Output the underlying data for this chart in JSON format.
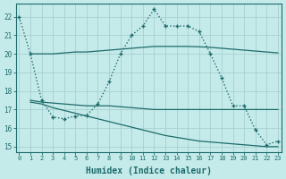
{
  "xlabel": "Humidex (Indice chaleur)",
  "bg_color": "#c5eaea",
  "grid_color": "#a8d0d0",
  "line_color": "#1e6b6b",
  "xlim": [
    -0.3,
    23.3
  ],
  "ylim": [
    14.7,
    22.7
  ],
  "x_ticks": [
    0,
    1,
    2,
    3,
    4,
    5,
    6,
    7,
    8,
    9,
    10,
    11,
    12,
    13,
    14,
    15,
    16,
    17,
    18,
    19,
    20,
    21,
    22,
    23
  ],
  "y_ticks": [
    15,
    16,
    17,
    18,
    19,
    20,
    21,
    22
  ],
  "main_x": [
    0,
    1,
    2,
    3,
    4,
    5,
    6,
    7,
    8,
    9,
    10,
    11,
    12,
    13,
    14,
    15,
    16,
    17,
    18,
    19,
    20,
    21,
    22,
    23
  ],
  "main_y": [
    22.0,
    20.0,
    17.5,
    16.6,
    16.5,
    16.65,
    16.7,
    17.3,
    18.5,
    20.0,
    21.0,
    21.5,
    22.4,
    21.5,
    21.5,
    21.5,
    21.2,
    20.0,
    18.7,
    17.2,
    17.2,
    15.9,
    15.1,
    15.3
  ],
  "line1_x": [
    1,
    2,
    3,
    4,
    5,
    6,
    7,
    8,
    9,
    10,
    11,
    12,
    13,
    14,
    15,
    16,
    17,
    18,
    19,
    20,
    21,
    22,
    23
  ],
  "line1_y": [
    20.0,
    20.0,
    20.0,
    20.05,
    20.1,
    20.1,
    20.15,
    20.2,
    20.25,
    20.3,
    20.35,
    20.4,
    20.4,
    20.4,
    20.4,
    20.38,
    20.35,
    20.3,
    20.25,
    20.2,
    20.15,
    20.1,
    20.05
  ],
  "line2_x": [
    1,
    2,
    3,
    4,
    5,
    6,
    7,
    8,
    9,
    10,
    11,
    12,
    13,
    14,
    15,
    16,
    17,
    18,
    19,
    20,
    21,
    22,
    23
  ],
  "line2_y": [
    17.5,
    17.4,
    17.35,
    17.3,
    17.25,
    17.2,
    17.2,
    17.2,
    17.15,
    17.1,
    17.05,
    17.0,
    17.0,
    17.0,
    17.0,
    17.0,
    17.0,
    17.0,
    17.0,
    17.0,
    17.0,
    17.0,
    17.0
  ],
  "line3_x": [
    1,
    2,
    3,
    4,
    5,
    6,
    7,
    8,
    9,
    10,
    11,
    12,
    13,
    14,
    15,
    16,
    17,
    18,
    19,
    20,
    21,
    22,
    23
  ],
  "line3_y": [
    17.4,
    17.3,
    17.1,
    16.95,
    16.8,
    16.65,
    16.5,
    16.35,
    16.2,
    16.05,
    15.9,
    15.75,
    15.6,
    15.5,
    15.4,
    15.3,
    15.25,
    15.2,
    15.15,
    15.1,
    15.05,
    15.0,
    15.0
  ]
}
